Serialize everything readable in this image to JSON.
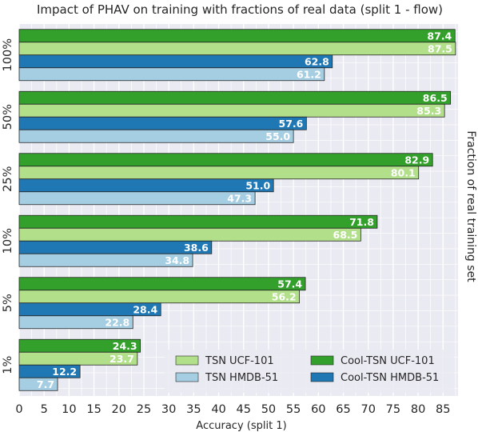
{
  "chart_data": {
    "type": "bar",
    "orientation": "horizontal",
    "title": "Impact of PHAV on training with fractions of real data (split 1 - flow)",
    "xlabel": "Accuracy (split 1)",
    "ylabel": "Fraction of real training set",
    "categories": [
      "100%",
      "50%",
      "25%",
      "10%",
      "5%",
      "1%"
    ],
    "xlim": [
      0,
      88
    ],
    "xticks": [
      0,
      5,
      10,
      15,
      20,
      25,
      30,
      35,
      40,
      45,
      50,
      55,
      60,
      65,
      70,
      75,
      80,
      85
    ],
    "grid": true,
    "legend_position": "lower-right",
    "series": [
      {
        "name": "Cool-TSN UCF-101",
        "color": "#33a02c",
        "values": [
          87.4,
          86.5,
          82.9,
          71.8,
          57.4,
          24.3
        ]
      },
      {
        "name": "TSN UCF-101",
        "color": "#b2df8a",
        "values": [
          87.5,
          85.3,
          80.1,
          68.5,
          56.2,
          23.7
        ]
      },
      {
        "name": "Cool-TSN HMDB-51",
        "color": "#1f78b4",
        "values": [
          62.8,
          57.6,
          51.0,
          38.6,
          28.4,
          12.2
        ]
      },
      {
        "name": "TSN HMDB-51",
        "color": "#a6cee3",
        "values": [
          61.2,
          55.0,
          47.3,
          34.8,
          22.8,
          7.7
        ]
      }
    ],
    "legend_order": [
      "TSN UCF-101",
      "Cool-TSN UCF-101",
      "TSN HMDB-51",
      "Cool-TSN HMDB-51"
    ],
    "plot_background": "#eaeaf2",
    "grid_color": "#ffffff"
  }
}
